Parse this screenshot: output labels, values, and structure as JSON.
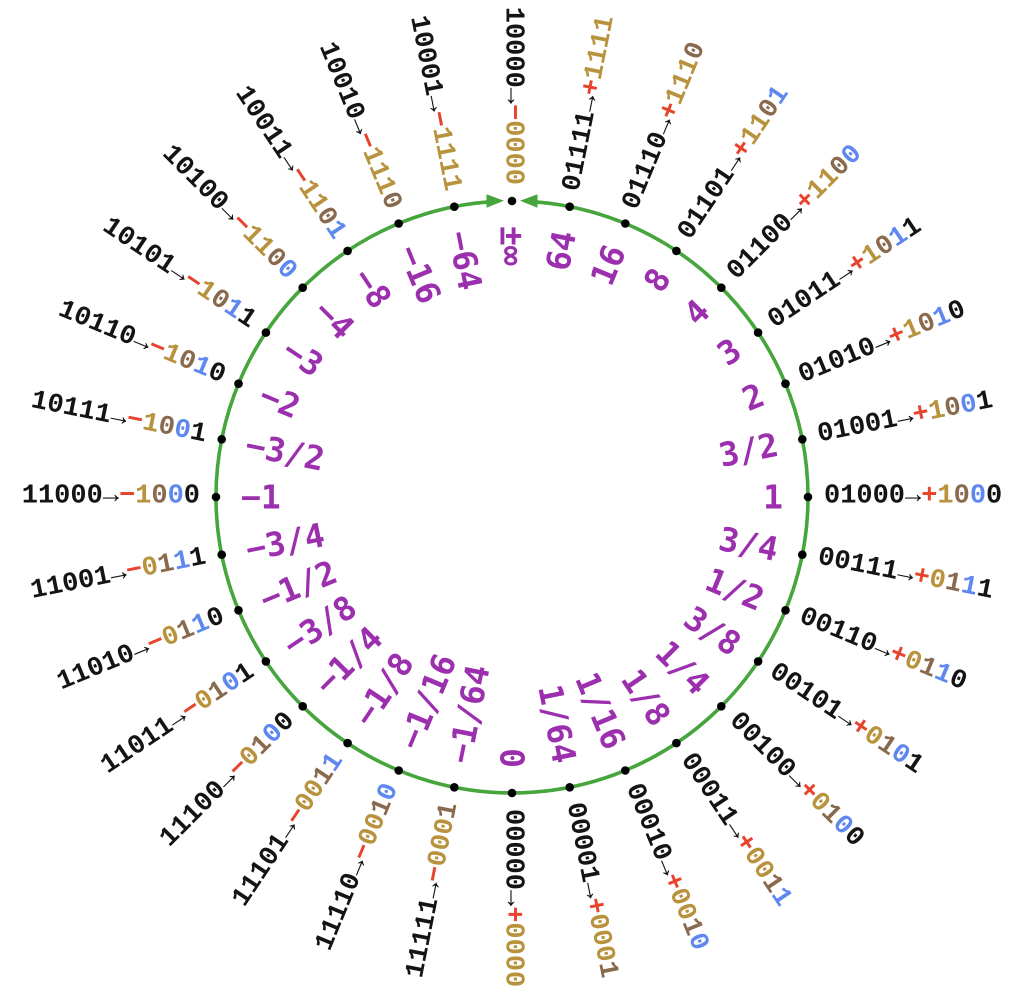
{
  "arrow": "→",
  "colors": {
    "circle_green": "#46A53C",
    "value_purple": "#9B2FAE",
    "sign_red": "#E8432C",
    "regime_gold": "#B8923D",
    "terminator_brown": "#8A6A4E",
    "exponent_blue": "#5F87F0",
    "fraction_black": "#141414",
    "code_black": "#141414",
    "dot_black": "#000000"
  },
  "points": [
    {
      "code": "10000",
      "sign": "−",
      "value": "±∞",
      "bits": [
        {
          "d": "0",
          "c": "r"
        },
        {
          "d": "0",
          "c": "r"
        },
        {
          "d": "0",
          "c": "r"
        },
        {
          "d": "0",
          "c": "r"
        }
      ]
    },
    {
      "code": "01111",
      "sign": "+",
      "value": "64",
      "bits": [
        {
          "d": "1",
          "c": "r"
        },
        {
          "d": "1",
          "c": "r"
        },
        {
          "d": "1",
          "c": "r"
        },
        {
          "d": "1",
          "c": "r"
        }
      ]
    },
    {
      "code": "01110",
      "sign": "+",
      "value": "16",
      "bits": [
        {
          "d": "1",
          "c": "r"
        },
        {
          "d": "1",
          "c": "r"
        },
        {
          "d": "1",
          "c": "r"
        },
        {
          "d": "0",
          "c": "t"
        }
      ]
    },
    {
      "code": "01101",
      "sign": "+",
      "value": "8",
      "bits": [
        {
          "d": "1",
          "c": "r"
        },
        {
          "d": "1",
          "c": "r"
        },
        {
          "d": "0",
          "c": "t"
        },
        {
          "d": "1",
          "c": "e"
        }
      ]
    },
    {
      "code": "01100",
      "sign": "+",
      "value": "4",
      "bits": [
        {
          "d": "1",
          "c": "r"
        },
        {
          "d": "1",
          "c": "r"
        },
        {
          "d": "0",
          "c": "t"
        },
        {
          "d": "0",
          "c": "e"
        }
      ]
    },
    {
      "code": "01011",
      "sign": "+",
      "value": "3",
      "bits": [
        {
          "d": "1",
          "c": "r"
        },
        {
          "d": "0",
          "c": "t"
        },
        {
          "d": "1",
          "c": "e"
        },
        {
          "d": "1",
          "c": "f"
        }
      ]
    },
    {
      "code": "01010",
      "sign": "+",
      "value": "2",
      "bits": [
        {
          "d": "1",
          "c": "r"
        },
        {
          "d": "0",
          "c": "t"
        },
        {
          "d": "1",
          "c": "e"
        },
        {
          "d": "0",
          "c": "f"
        }
      ]
    },
    {
      "code": "01001",
      "sign": "+",
      "value": "3/2",
      "bits": [
        {
          "d": "1",
          "c": "r"
        },
        {
          "d": "0",
          "c": "t"
        },
        {
          "d": "0",
          "c": "e"
        },
        {
          "d": "1",
          "c": "f"
        }
      ]
    },
    {
      "code": "01000",
      "sign": "+",
      "value": "1",
      "bits": [
        {
          "d": "1",
          "c": "r"
        },
        {
          "d": "0",
          "c": "t"
        },
        {
          "d": "0",
          "c": "e"
        },
        {
          "d": "0",
          "c": "f"
        }
      ]
    },
    {
      "code": "00111",
      "sign": "+",
      "value": "3/4",
      "bits": [
        {
          "d": "0",
          "c": "r"
        },
        {
          "d": "1",
          "c": "t"
        },
        {
          "d": "1",
          "c": "e"
        },
        {
          "d": "1",
          "c": "f"
        }
      ]
    },
    {
      "code": "00110",
      "sign": "+",
      "value": "1/2",
      "bits": [
        {
          "d": "0",
          "c": "r"
        },
        {
          "d": "1",
          "c": "t"
        },
        {
          "d": "1",
          "c": "e"
        },
        {
          "d": "0",
          "c": "f"
        }
      ]
    },
    {
      "code": "00101",
      "sign": "+",
      "value": "3/8",
      "bits": [
        {
          "d": "0",
          "c": "r"
        },
        {
          "d": "1",
          "c": "t"
        },
        {
          "d": "0",
          "c": "e"
        },
        {
          "d": "1",
          "c": "f"
        }
      ]
    },
    {
      "code": "00100",
      "sign": "+",
      "value": "1/4",
      "bits": [
        {
          "d": "0",
          "c": "r"
        },
        {
          "d": "1",
          "c": "t"
        },
        {
          "d": "0",
          "c": "e"
        },
        {
          "d": "0",
          "c": "f"
        }
      ]
    },
    {
      "code": "00011",
      "sign": "+",
      "value": "1/8",
      "bits": [
        {
          "d": "0",
          "c": "r"
        },
        {
          "d": "0",
          "c": "r"
        },
        {
          "d": "1",
          "c": "t"
        },
        {
          "d": "1",
          "c": "e"
        }
      ]
    },
    {
      "code": "00010",
      "sign": "+",
      "value": "1/16",
      "bits": [
        {
          "d": "0",
          "c": "r"
        },
        {
          "d": "0",
          "c": "r"
        },
        {
          "d": "1",
          "c": "t"
        },
        {
          "d": "0",
          "c": "e"
        }
      ]
    },
    {
      "code": "00001",
      "sign": "+",
      "value": "1/64",
      "bits": [
        {
          "d": "0",
          "c": "r"
        },
        {
          "d": "0",
          "c": "r"
        },
        {
          "d": "0",
          "c": "r"
        },
        {
          "d": "1",
          "c": "t"
        }
      ]
    },
    {
      "code": "00000",
      "sign": "+",
      "value": "0",
      "bits": [
        {
          "d": "0",
          "c": "r"
        },
        {
          "d": "0",
          "c": "r"
        },
        {
          "d": "0",
          "c": "r"
        },
        {
          "d": "0",
          "c": "r"
        }
      ]
    },
    {
      "code": "11111",
      "sign": "−",
      "value": "−1/64",
      "bits": [
        {
          "d": "0",
          "c": "r"
        },
        {
          "d": "0",
          "c": "r"
        },
        {
          "d": "0",
          "c": "r"
        },
        {
          "d": "1",
          "c": "t"
        }
      ]
    },
    {
      "code": "11110",
      "sign": "−",
      "value": "−1/16",
      "bits": [
        {
          "d": "0",
          "c": "r"
        },
        {
          "d": "0",
          "c": "r"
        },
        {
          "d": "1",
          "c": "t"
        },
        {
          "d": "0",
          "c": "e"
        }
      ]
    },
    {
      "code": "11101",
      "sign": "−",
      "value": "−1/8",
      "bits": [
        {
          "d": "0",
          "c": "r"
        },
        {
          "d": "0",
          "c": "r"
        },
        {
          "d": "1",
          "c": "t"
        },
        {
          "d": "1",
          "c": "e"
        }
      ]
    },
    {
      "code": "11100",
      "sign": "−",
      "value": "−1/4",
      "bits": [
        {
          "d": "0",
          "c": "r"
        },
        {
          "d": "1",
          "c": "t"
        },
        {
          "d": "0",
          "c": "e"
        },
        {
          "d": "0",
          "c": "f"
        }
      ]
    },
    {
      "code": "11011",
      "sign": "−",
      "value": "−3/8",
      "bits": [
        {
          "d": "0",
          "c": "r"
        },
        {
          "d": "1",
          "c": "t"
        },
        {
          "d": "0",
          "c": "e"
        },
        {
          "d": "1",
          "c": "f"
        }
      ]
    },
    {
      "code": "11010",
      "sign": "−",
      "value": "−1/2",
      "bits": [
        {
          "d": "0",
          "c": "r"
        },
        {
          "d": "1",
          "c": "t"
        },
        {
          "d": "1",
          "c": "e"
        },
        {
          "d": "0",
          "c": "f"
        }
      ]
    },
    {
      "code": "11001",
      "sign": "−",
      "value": "−3/4",
      "bits": [
        {
          "d": "0",
          "c": "r"
        },
        {
          "d": "1",
          "c": "t"
        },
        {
          "d": "1",
          "c": "e"
        },
        {
          "d": "1",
          "c": "f"
        }
      ]
    },
    {
      "code": "11000",
      "sign": "−",
      "value": "−1",
      "bits": [
        {
          "d": "1",
          "c": "r"
        },
        {
          "d": "0",
          "c": "t"
        },
        {
          "d": "0",
          "c": "e"
        },
        {
          "d": "0",
          "c": "f"
        }
      ]
    },
    {
      "code": "10111",
      "sign": "−",
      "value": "−3/2",
      "bits": [
        {
          "d": "1",
          "c": "r"
        },
        {
          "d": "0",
          "c": "t"
        },
        {
          "d": "0",
          "c": "e"
        },
        {
          "d": "1",
          "c": "f"
        }
      ]
    },
    {
      "code": "10110",
      "sign": "−",
      "value": "−2",
      "bits": [
        {
          "d": "1",
          "c": "r"
        },
        {
          "d": "0",
          "c": "t"
        },
        {
          "d": "1",
          "c": "e"
        },
        {
          "d": "0",
          "c": "f"
        }
      ]
    },
    {
      "code": "10101",
      "sign": "−",
      "value": "−3",
      "bits": [
        {
          "d": "1",
          "c": "r"
        },
        {
          "d": "0",
          "c": "t"
        },
        {
          "d": "1",
          "c": "e"
        },
        {
          "d": "1",
          "c": "f"
        }
      ]
    },
    {
      "code": "10100",
      "sign": "−",
      "value": "−4",
      "bits": [
        {
          "d": "1",
          "c": "r"
        },
        {
          "d": "1",
          "c": "r"
        },
        {
          "d": "0",
          "c": "t"
        },
        {
          "d": "0",
          "c": "e"
        }
      ]
    },
    {
      "code": "10011",
      "sign": "−",
      "value": "−8",
      "bits": [
        {
          "d": "1",
          "c": "r"
        },
        {
          "d": "1",
          "c": "r"
        },
        {
          "d": "0",
          "c": "t"
        },
        {
          "d": "1",
          "c": "e"
        }
      ]
    },
    {
      "code": "10010",
      "sign": "−",
      "value": "−16",
      "bits": [
        {
          "d": "1",
          "c": "r"
        },
        {
          "d": "1",
          "c": "r"
        },
        {
          "d": "1",
          "c": "r"
        },
        {
          "d": "0",
          "c": "t"
        }
      ]
    },
    {
      "code": "10001",
      "sign": "−",
      "value": "−64",
      "bits": [
        {
          "d": "1",
          "c": "r"
        },
        {
          "d": "1",
          "c": "r"
        },
        {
          "d": "1",
          "c": "r"
        },
        {
          "d": "1",
          "c": "r"
        }
      ]
    }
  ]
}
